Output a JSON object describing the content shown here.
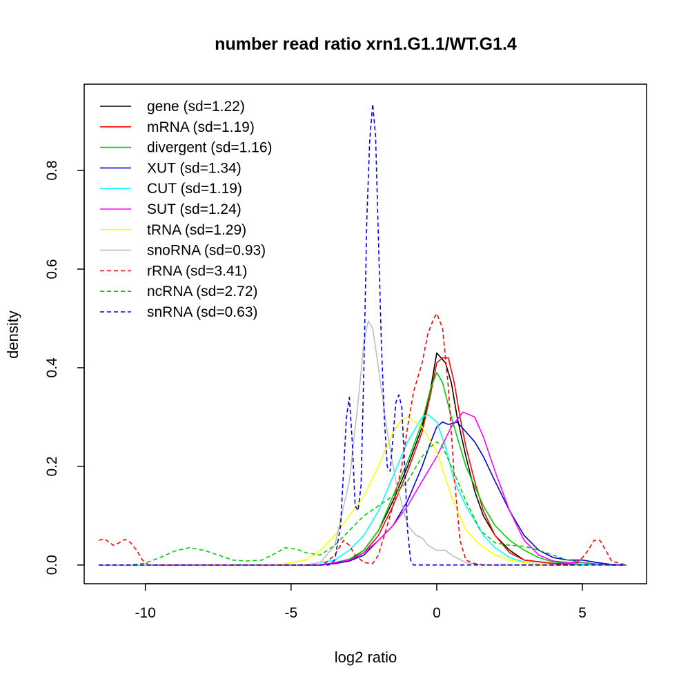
{
  "chart_data": {
    "type": "line",
    "title": "number read ratio xrn1.G1.1/WT.G1.4",
    "xlabel": "log2 ratio",
    "ylabel": "density",
    "xlim": [
      -12.1,
      7.2
    ],
    "ylim": [
      -0.038,
      0.975
    ],
    "xticks": [
      -10,
      -5,
      0,
      5
    ],
    "xtick_labels": [
      "-10",
      "-5",
      "0",
      "5"
    ],
    "yticks": [
      0.0,
      0.2,
      0.4,
      0.6,
      0.8
    ],
    "ytick_labels": [
      "0.0",
      "0.2",
      "0.4",
      "0.6",
      "0.8"
    ],
    "grid": false,
    "legend_position": "top-left",
    "series": [
      {
        "name": "gene",
        "label": "gene (sd=1.22)",
        "color": "#000000",
        "dash": "solid",
        "x": [
          -11.6,
          -4,
          -3.5,
          -3,
          -2.5,
          -2,
          -1.5,
          -1,
          -0.5,
          -0.2,
          0,
          0.15,
          0.3,
          0.5,
          0.7,
          1,
          1.3,
          1.6,
          2,
          2.5,
          3,
          4,
          5,
          6,
          6.5
        ],
        "y": [
          0,
          0,
          0.005,
          0.01,
          0.03,
          0.07,
          0.13,
          0.2,
          0.28,
          0.36,
          0.43,
          0.42,
          0.41,
          0.37,
          0.3,
          0.22,
          0.15,
          0.1,
          0.06,
          0.03,
          0.01,
          0.003,
          0.001,
          0,
          0
        ]
      },
      {
        "name": "mRNA",
        "label": "mRNA (sd=1.19)",
        "color": "#ff0000",
        "dash": "solid",
        "x": [
          -11.6,
          -4,
          -3.5,
          -3,
          -2.5,
          -2,
          -1.5,
          -1,
          -0.5,
          -0.2,
          0,
          0.2,
          0.4,
          0.6,
          0.8,
          1,
          1.3,
          1.6,
          2,
          2.5,
          3,
          4,
          5,
          6,
          6.5
        ],
        "y": [
          0,
          0,
          0.003,
          0.008,
          0.025,
          0.06,
          0.12,
          0.19,
          0.27,
          0.35,
          0.41,
          0.42,
          0.42,
          0.37,
          0.3,
          0.24,
          0.17,
          0.11,
          0.06,
          0.025,
          0.01,
          0.003,
          0.001,
          0,
          0
        ]
      },
      {
        "name": "divergent",
        "label": "divergent (sd=1.16)",
        "color": "#00cd00",
        "dash": "solid",
        "x": [
          -11.6,
          -4,
          -3.5,
          -3,
          -2.5,
          -2,
          -1.5,
          -1,
          -0.5,
          -0.2,
          0,
          0.2,
          0.5,
          0.8,
          1,
          1.3,
          1.6,
          2,
          2.5,
          3,
          3.5,
          4,
          5,
          6,
          6.5
        ],
        "y": [
          0,
          0,
          0.005,
          0.012,
          0.03,
          0.07,
          0.14,
          0.21,
          0.29,
          0.36,
          0.39,
          0.37,
          0.3,
          0.24,
          0.2,
          0.16,
          0.12,
          0.08,
          0.05,
          0.03,
          0.015,
          0.006,
          0.001,
          0,
          0
        ]
      },
      {
        "name": "XUT",
        "label": "XUT (sd=1.34)",
        "color": "#0000cd",
        "dash": "solid",
        "x": [
          -11.6,
          -4,
          -3.5,
          -3,
          -2.5,
          -2,
          -1.5,
          -1,
          -0.5,
          -0.2,
          0,
          0.2,
          0.4,
          0.7,
          1,
          1.3,
          1.6,
          2,
          2.5,
          3,
          3.5,
          4,
          4.5,
          5,
          5.5,
          6,
          6.5
        ],
        "y": [
          0,
          0,
          0.003,
          0.008,
          0.02,
          0.05,
          0.08,
          0.13,
          0.2,
          0.25,
          0.28,
          0.29,
          0.285,
          0.29,
          0.27,
          0.25,
          0.22,
          0.17,
          0.11,
          0.06,
          0.03,
          0.015,
          0.01,
          0.01,
          0.005,
          0.001,
          0
        ]
      },
      {
        "name": "CUT",
        "label": "CUT (sd=1.19)",
        "color": "#00ffff",
        "dash": "solid",
        "x": [
          -11.6,
          -4.5,
          -4,
          -3.5,
          -3,
          -2.5,
          -2,
          -1.5,
          -1,
          -0.5,
          -0.3,
          0,
          0.3,
          0.6,
          1,
          1.3,
          1.6,
          2,
          2.5,
          3,
          3.5,
          4,
          5,
          6.5
        ],
        "y": [
          0,
          0,
          0.005,
          0.01,
          0.03,
          0.06,
          0.11,
          0.18,
          0.25,
          0.3,
          0.305,
          0.29,
          0.24,
          0.17,
          0.12,
          0.09,
          0.06,
          0.035,
          0.015,
          0.006,
          0.002,
          0,
          0,
          0
        ]
      },
      {
        "name": "SUT",
        "label": "SUT (sd=1.24)",
        "color": "#ff00ff",
        "dash": "solid",
        "x": [
          -11.6,
          -4,
          -3.5,
          -3,
          -2.5,
          -2,
          -1.5,
          -1,
          -0.5,
          0,
          0.5,
          0.9,
          1.3,
          1.6,
          2,
          2.5,
          3,
          3.5,
          4,
          4.5,
          5,
          5.5,
          6,
          6.5
        ],
        "y": [
          0,
          0,
          0.005,
          0.01,
          0.025,
          0.05,
          0.08,
          0.12,
          0.17,
          0.22,
          0.28,
          0.31,
          0.3,
          0.26,
          0.19,
          0.11,
          0.05,
          0.02,
          0.008,
          0.005,
          0.005,
          0.002,
          0,
          0
        ]
      },
      {
        "name": "tRNA",
        "label": "tRNA (sd=1.29)",
        "color": "#ffff00",
        "dash": "solid",
        "x": [
          -11.6,
          -5.5,
          -5,
          -4.5,
          -4,
          -3.5,
          -3,
          -2.5,
          -2,
          -1.5,
          -1.2,
          -1,
          -0.5,
          0,
          0.5,
          1,
          1.5,
          2,
          2.5,
          3,
          3.5,
          4,
          4.5
        ],
        "y": [
          0,
          0,
          0.005,
          0.01,
          0.03,
          0.06,
          0.1,
          0.14,
          0.2,
          0.27,
          0.295,
          0.3,
          0.28,
          0.23,
          0.14,
          0.07,
          0.04,
          0.02,
          0.01,
          0.005,
          0.002,
          0,
          0
        ]
      },
      {
        "name": "snoRNA",
        "label": "snoRNA (sd=0.93)",
        "color": "#bebebe",
        "dash": "solid",
        "x": [
          -11.6,
          -4.5,
          -4,
          -3.5,
          -3,
          -2.7,
          -2.5,
          -2.35,
          -2.2,
          -2,
          -1.7,
          -1.4,
          -1,
          -0.7,
          -0.5,
          -0.3,
          0,
          0.3,
          0.5,
          1,
          1.5
        ],
        "y": [
          0,
          0,
          0.005,
          0.04,
          0.17,
          0.33,
          0.45,
          0.495,
          0.48,
          0.4,
          0.27,
          0.17,
          0.08,
          0.06,
          0.055,
          0.04,
          0.03,
          0.03,
          0.02,
          0.005,
          0
        ]
      },
      {
        "name": "rRNA",
        "label": "rRNA (sd=3.41)",
        "color": "#ff0000",
        "dash": "dashed",
        "x": [
          -11.6,
          -11.4,
          -11.1,
          -10.9,
          -10.7,
          -10.5,
          -10.3,
          -10.1,
          -9.9,
          -9.5,
          -4,
          -3.8,
          -3.5,
          -3.3,
          -3.2,
          -3,
          -2.8,
          -2.5,
          -2.2,
          -2,
          -1.8,
          -1.5,
          -1.2,
          -1,
          -0.8,
          -0.5,
          -0.3,
          -0.1,
          0,
          0.2,
          0.4,
          0.6,
          0.8,
          1,
          1.3,
          1.6,
          2,
          4.7,
          5,
          5.2,
          5.4,
          5.6,
          5.8,
          6,
          6.5
        ],
        "y": [
          0.05,
          0.053,
          0.04,
          0.045,
          0.052,
          0.045,
          0.03,
          0.01,
          0,
          0,
          0,
          0.005,
          0.02,
          0.04,
          0.05,
          0.04,
          0.02,
          0.005,
          0.003,
          0.02,
          0.06,
          0.12,
          0.2,
          0.28,
          0.35,
          0.41,
          0.47,
          0.5,
          0.51,
          0.48,
          0.36,
          0.18,
          0.05,
          0.01,
          0.003,
          0,
          0,
          0,
          0.015,
          0.03,
          0.05,
          0.05,
          0.03,
          0.008,
          0
        ]
      },
      {
        "name": "ncRNA",
        "label": "ncRNA (sd=2.72)",
        "color": "#00cd00",
        "dash": "dashed",
        "x": [
          -11.6,
          -10.5,
          -10,
          -9.5,
          -9,
          -8.5,
          -8,
          -7.5,
          -7,
          -6.5,
          -6,
          -5.5,
          -5.2,
          -4.8,
          -4.5,
          -4,
          -3.5,
          -3,
          -2.5,
          -2,
          -1.5,
          -1,
          -0.5,
          -0.2,
          0,
          0.2,
          0.5,
          1,
          1.5,
          2,
          2.5,
          3,
          3.5,
          4,
          4.5,
          5,
          5.5,
          6,
          6.5
        ],
        "y": [
          0,
          0,
          0.004,
          0.015,
          0.028,
          0.035,
          0.03,
          0.02,
          0.01,
          0.008,
          0.01,
          0.025,
          0.035,
          0.032,
          0.025,
          0.02,
          0.04,
          0.07,
          0.1,
          0.12,
          0.14,
          0.17,
          0.22,
          0.24,
          0.25,
          0.24,
          0.2,
          0.13,
          0.07,
          0.045,
          0.04,
          0.038,
          0.03,
          0.02,
          0.01,
          0.005,
          0.002,
          0,
          0
        ]
      },
      {
        "name": "snRNA",
        "label": "snRNA (sd=0.63)",
        "color": "#0000ff",
        "dash": "dashed",
        "x": [
          -11.6,
          -3.7,
          -3.5,
          -3.3,
          -3.1,
          -3,
          -2.9,
          -2.8,
          -2.7,
          -2.6,
          -2.5,
          -2.4,
          -2.3,
          -2.2,
          -2.1,
          -2,
          -1.9,
          -1.8,
          -1.7,
          -1.6,
          -1.5,
          -1.4,
          -1.3,
          -1.2,
          -1.1,
          -1,
          -0.9,
          -0.8,
          -0.7,
          -0.5,
          6.5
        ],
        "y": [
          0,
          0,
          0.01,
          0.08,
          0.3,
          0.34,
          0.25,
          0.12,
          0.11,
          0.16,
          0.4,
          0.7,
          0.86,
          0.935,
          0.87,
          0.66,
          0.45,
          0.3,
          0.2,
          0.19,
          0.26,
          0.33,
          0.345,
          0.32,
          0.2,
          0.07,
          0.01,
          0,
          0,
          0,
          0
        ]
      }
    ]
  }
}
